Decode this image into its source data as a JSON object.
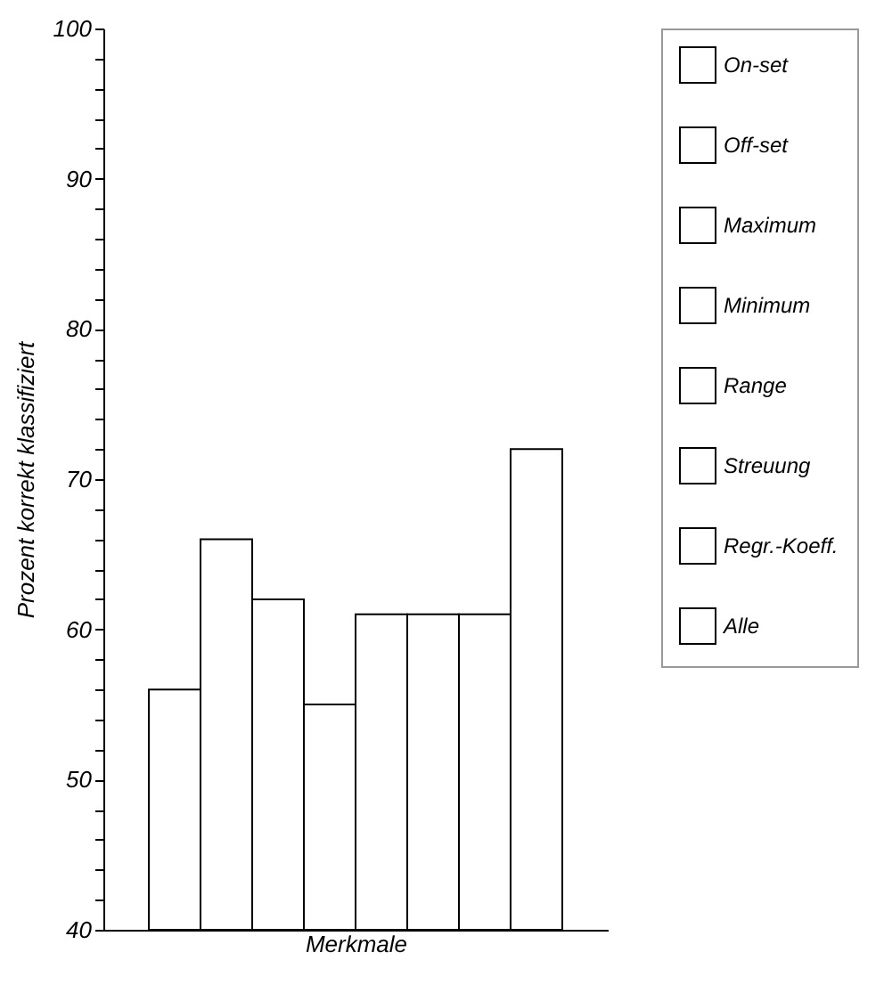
{
  "chart_data": {
    "type": "bar",
    "xlabel": "Merkmale",
    "ylabel": "Prozent korrekt klassifiziert",
    "categories": [
      null
    ],
    "series": [
      {
        "name": "On-set",
        "color": "#ffffff",
        "values": [
          56
        ]
      },
      {
        "name": "Off-set",
        "color": "#ffffff",
        "values": [
          66
        ]
      },
      {
        "name": "Maximum",
        "color": "#ffffff",
        "values": [
          62
        ]
      },
      {
        "name": "Minimum",
        "color": "#ffffff",
        "values": [
          55
        ]
      },
      {
        "name": "Range",
        "color": "#ffffff",
        "values": [
          61
        ]
      },
      {
        "name": "Streuung",
        "color": "#ffffff",
        "values": [
          61
        ]
      },
      {
        "name": "Regr.-Koeff.",
        "color": "#ffffff",
        "values": [
          61
        ]
      },
      {
        "name": "Alle",
        "color": "#ffffff",
        "values": [
          72
        ]
      }
    ],
    "ylim": [
      40,
      100
    ],
    "yticks": [
      40,
      {
        "value": 42,
        "label": null
      },
      {
        "value": 44,
        "label": null
      },
      {
        "value": 46,
        "label": null
      },
      {
        "value": 48,
        "label": null
      },
      50,
      {
        "value": 52,
        "label": null
      },
      {
        "value": 54,
        "label": null
      },
      {
        "value": 56,
        "label": null
      },
      {
        "value": 58,
        "label": null
      },
      60,
      {
        "value": 62,
        "label": null
      },
      {
        "value": 64,
        "label": null
      },
      {
        "value": 66,
        "label": null
      },
      {
        "value": 68,
        "label": null
      },
      70,
      {
        "value": 72,
        "label": null
      },
      {
        "value": 74,
        "label": null
      },
      {
        "value": 76,
        "label": null
      },
      {
        "value": 78,
        "label": null
      },
      80,
      {
        "value": 82,
        "label": null
      },
      {
        "value": 84,
        "label": null
      },
      {
        "value": 86,
        "label": null
      },
      {
        "value": 88,
        "label": null
      },
      90,
      {
        "value": 92,
        "label": null
      },
      {
        "value": 94,
        "label": null
      },
      {
        "value": 96,
        "label": null
      },
      {
        "value": 98,
        "label": null
      },
      100
    ],
    "grid": false,
    "legend": "right"
  }
}
